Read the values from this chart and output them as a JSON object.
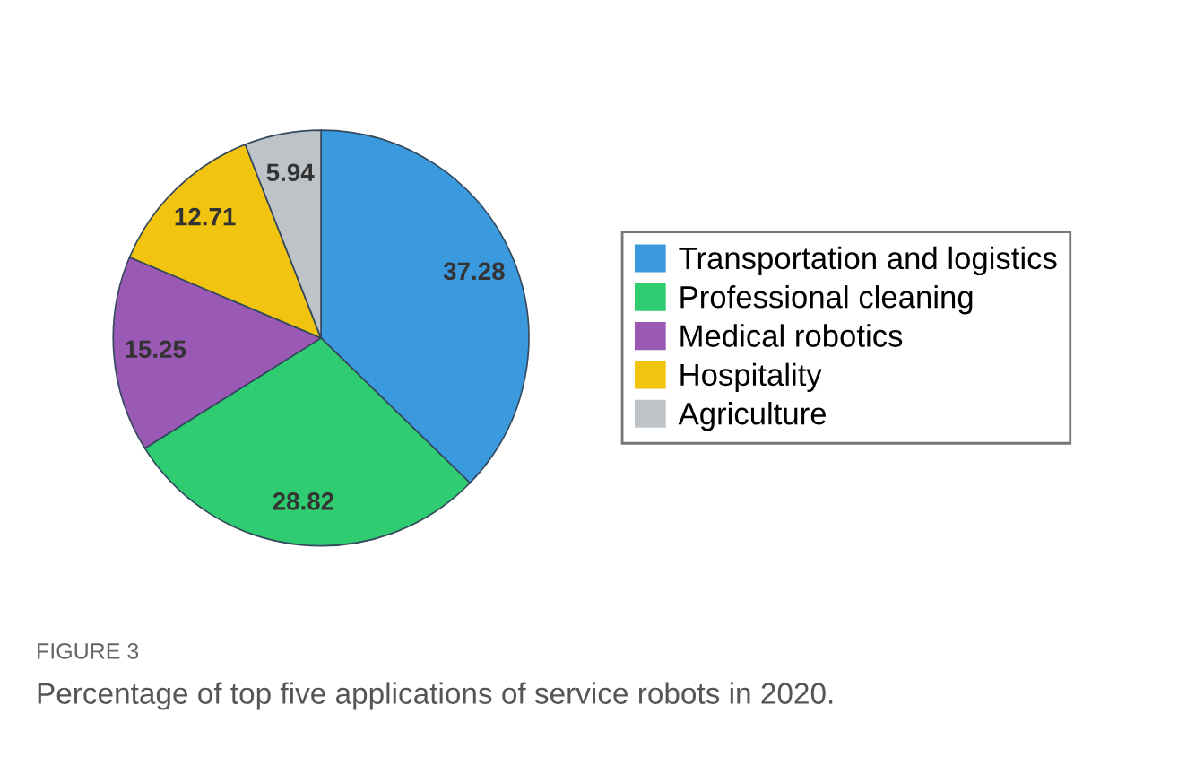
{
  "chart_data": {
    "type": "pie",
    "categories": [
      "Transportation and logistics",
      "Professional cleaning",
      "Medical robotics",
      "Hospitality",
      "Agriculture"
    ],
    "values": [
      37.28,
      28.82,
      15.25,
      12.71,
      5.94
    ],
    "colors": [
      "#3b9ade",
      "#2fcc71",
      "#9b59b6",
      "#f1c40f",
      "#bdc3c7"
    ],
    "data_labels": true,
    "legend": "right",
    "annotations": [
      "FIGURE 3",
      "Percentage of top five applications of service robots in 2020."
    ]
  }
}
